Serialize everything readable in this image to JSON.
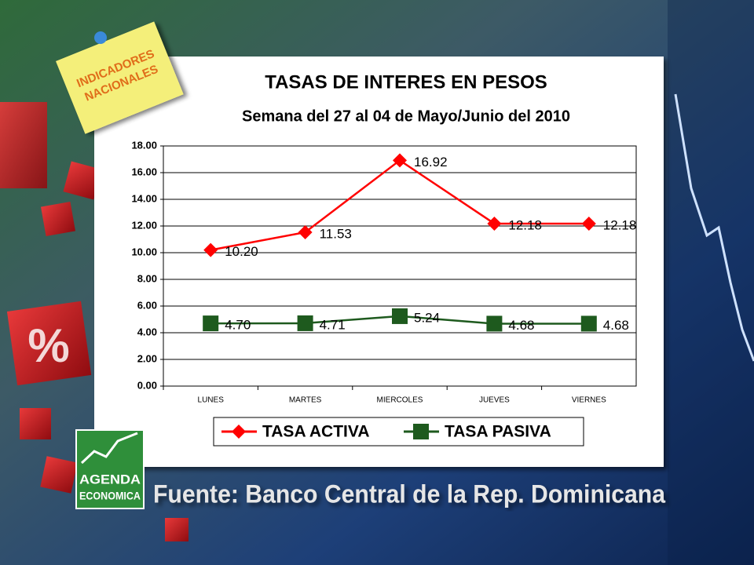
{
  "note": [
    "INDICADORES",
    "NACIONALES"
  ],
  "logo": [
    "AGENDA",
    "ECONOMICA"
  ],
  "source": "Fuente: Banco Central de la Rep. Dominicana",
  "chart_data": {
    "type": "line",
    "title": "TASAS DE INTERES EN PESOS",
    "subtitle": "Semana del 27 al 04 de Mayo/Junio del 2010",
    "categories": [
      "LUNES",
      "MARTES",
      "MIERCOLES",
      "JUEVES",
      "VIERNES"
    ],
    "series": [
      {
        "name": "TASA ACTIVA",
        "color": "#ff0000",
        "marker": "diamond",
        "values": [
          10.2,
          11.53,
          16.92,
          12.18,
          12.18
        ],
        "value_labels": [
          "10.20",
          "11.53",
          "16.92",
          "12.18",
          "12.18"
        ]
      },
      {
        "name": "TASA PASIVA",
        "color": "#1e5a1e",
        "marker": "square",
        "values": [
          4.7,
          4.71,
          5.24,
          4.68,
          4.68
        ],
        "value_labels": [
          "4.70",
          "4.71",
          "5.24",
          "4.68",
          "4.68"
        ]
      }
    ],
    "ylim": [
      0,
      18
    ],
    "yticks": [
      {
        "value": 0,
        "label": "0.00"
      },
      {
        "value": 2,
        "label": "2.00"
      },
      {
        "value": 4,
        "label": "4.00"
      },
      {
        "value": 6,
        "label": "6.00"
      },
      {
        "value": 8,
        "label": "8.00"
      },
      {
        "value": 10,
        "label": "10.00"
      },
      {
        "value": 12,
        "label": "12.00"
      },
      {
        "value": 14,
        "label": "14.00"
      },
      {
        "value": 16,
        "label": "16.00"
      },
      {
        "value": 18,
        "label": "18.00"
      }
    ],
    "grid": true,
    "legend": "bottom"
  }
}
